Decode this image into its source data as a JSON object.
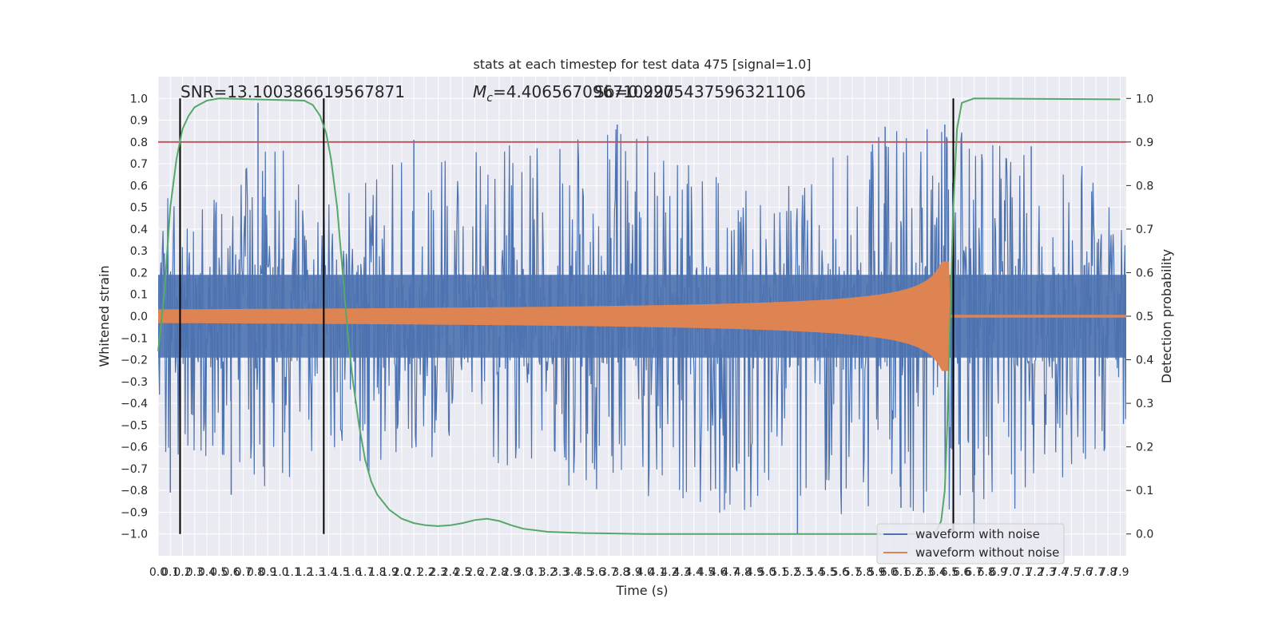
{
  "chart_data": {
    "type": "line",
    "title": "stats at each timestep for test data 475 [signal=1.0]",
    "xlabel": "Time (s)",
    "ylabel": "Whitened strain",
    "y2label": "Detection probability",
    "xlim": [
      0.0,
      7.95
    ],
    "ylim": [
      -1.1,
      1.1
    ],
    "y2lim": [
      -0.05,
      1.05
    ],
    "x_ticks": [
      "0.0",
      "0.1",
      "0.2",
      "0.3",
      "0.4",
      "0.5",
      "0.6",
      "0.7",
      "0.8",
      "0.9",
      "1.0",
      "1.1",
      "1.2",
      "1.3",
      "1.4",
      "1.5",
      "1.6",
      "1.7",
      "1.8",
      "1.9",
      "2.0",
      "2.1",
      "2.2",
      "2.3",
      "2.4",
      "2.5",
      "2.6",
      "2.7",
      "2.8",
      "2.9",
      "3.0",
      "3.1",
      "3.2",
      "3.3",
      "3.4",
      "3.5",
      "3.6",
      "3.7",
      "3.8",
      "3.9",
      "4.0",
      "4.1",
      "4.2",
      "4.3",
      "4.4",
      "4.5",
      "4.6",
      "4.7",
      "4.8",
      "4.9",
      "5.0",
      "5.1",
      "5.2",
      "5.3",
      "5.4",
      "5.5",
      "5.6",
      "5.7",
      "5.8",
      "5.9",
      "6.0",
      "6.1",
      "6.2",
      "6.3",
      "6.4",
      "6.5",
      "6.6",
      "6.7",
      "6.8",
      "6.9",
      "7.0",
      "7.1",
      "7.2",
      "7.3",
      "7.4",
      "7.5",
      "7.6",
      "7.7",
      "7.8",
      "7.9"
    ],
    "y_ticks": [
      "1.0",
      "0.9",
      "0.8",
      "0.7",
      "0.6",
      "0.5",
      "0.4",
      "0.3",
      "0.2",
      "0.1",
      "0.0",
      "−0.1",
      "−0.2",
      "−0.3",
      "−0.4",
      "−0.5",
      "−0.6",
      "−0.7",
      "−0.8",
      "−0.9",
      "−1.0"
    ],
    "y2_ticks": [
      "1.0",
      "0.9",
      "0.8",
      "0.7",
      "0.6",
      "0.5",
      "0.4",
      "0.3",
      "0.2",
      "0.1",
      "0.0"
    ],
    "annotations": {
      "snr_text": "SNR=13.100386619567871",
      "mc_symbol": "M",
      "mc_sub": "c",
      "mc_text": "=4.406567096710297",
      "overlap_text": "Sb=0.9205437596321106"
    },
    "threshold": {
      "value": 0.9,
      "axis": "y2",
      "color": "#c44e52"
    },
    "vlines": [
      0.18,
      1.36,
      6.53
    ],
    "legend": {
      "placement": "lower-right",
      "entries": [
        "waveform with noise",
        "waveform without noise"
      ]
    },
    "grid": true,
    "series": [
      {
        "name": "waveform with noise",
        "axis": "y",
        "color": "#4c72b0",
        "style": "dense noise fill",
        "envelope_top": [
          [
            0,
            0.4
          ],
          [
            0.1,
            0.6
          ],
          [
            0.6,
            0.55
          ],
          [
            0.8,
            0.98
          ],
          [
            1.4,
            0.55
          ],
          [
            2.1,
            0.8
          ],
          [
            2.6,
            0.78
          ],
          [
            3.8,
            0.88
          ],
          [
            5.0,
            0.6
          ],
          [
            5.8,
            0.87
          ],
          [
            6.4,
            0.88
          ],
          [
            7.0,
            0.78
          ],
          [
            7.9,
            0.65
          ]
        ],
        "envelope_bottom": [
          [
            0,
            -0.5
          ],
          [
            0.1,
            -0.81
          ],
          [
            0.6,
            -0.82
          ],
          [
            1.2,
            -0.74
          ],
          [
            2.6,
            -0.7
          ],
          [
            5.25,
            -1.0
          ],
          [
            6.1,
            -0.88
          ],
          [
            6.7,
            -1.0
          ],
          [
            7.9,
            -0.6
          ]
        ],
        "spikes": [
          [
            0.82,
            0.98
          ],
          [
            3.77,
            0.88
          ],
          [
            5.97,
            0.87
          ],
          [
            6.46,
            0.88
          ],
          [
            7.17,
            0.78
          ],
          [
            2.1,
            0.81
          ],
          [
            0.1,
            -0.81
          ],
          [
            0.6,
            -0.82
          ],
          [
            5.25,
            -1.0
          ],
          [
            6.7,
            -1.0
          ],
          [
            6.1,
            -0.88
          ]
        ]
      },
      {
        "name": "waveform without noise",
        "axis": "y",
        "color": "#dd8452",
        "style": "chirp",
        "merger_time": 6.5,
        "start_amplitude": 0.03,
        "peak_amplitude": 0.25
      },
      {
        "axis": "y2",
        "color": "#55a868",
        "points": [
          [
            0.0,
            0.42
          ],
          [
            0.05,
            0.55
          ],
          [
            0.1,
            0.75
          ],
          [
            0.15,
            0.86
          ],
          [
            0.2,
            0.93
          ],
          [
            0.25,
            0.96
          ],
          [
            0.3,
            0.98
          ],
          [
            0.4,
            0.995
          ],
          [
            0.5,
            1.0
          ],
          [
            1.2,
            0.995
          ],
          [
            1.27,
            0.985
          ],
          [
            1.33,
            0.96
          ],
          [
            1.38,
            0.92
          ],
          [
            1.42,
            0.86
          ],
          [
            1.47,
            0.75
          ],
          [
            1.5,
            0.65
          ],
          [
            1.53,
            0.55
          ],
          [
            1.56,
            0.45
          ],
          [
            1.6,
            0.35
          ],
          [
            1.65,
            0.25
          ],
          [
            1.7,
            0.17
          ],
          [
            1.75,
            0.12
          ],
          [
            1.8,
            0.09
          ],
          [
            1.9,
            0.055
          ],
          [
            2.0,
            0.035
          ],
          [
            2.1,
            0.025
          ],
          [
            2.2,
            0.02
          ],
          [
            2.3,
            0.018
          ],
          [
            2.4,
            0.02
          ],
          [
            2.5,
            0.025
          ],
          [
            2.6,
            0.032
          ],
          [
            2.7,
            0.035
          ],
          [
            2.8,
            0.03
          ],
          [
            2.9,
            0.02
          ],
          [
            3.0,
            0.012
          ],
          [
            3.2,
            0.005
          ],
          [
            3.5,
            0.002
          ],
          [
            4.0,
            0.0
          ],
          [
            5.0,
            0.0
          ],
          [
            6.0,
            0.0
          ],
          [
            6.38,
            0.0
          ],
          [
            6.43,
            0.03
          ],
          [
            6.46,
            0.1
          ],
          [
            6.48,
            0.25
          ],
          [
            6.5,
            0.45
          ],
          [
            6.53,
            0.75
          ],
          [
            6.56,
            0.93
          ],
          [
            6.6,
            0.99
          ],
          [
            6.7,
            1.0
          ],
          [
            7.9,
            0.998
          ]
        ]
      }
    ]
  }
}
